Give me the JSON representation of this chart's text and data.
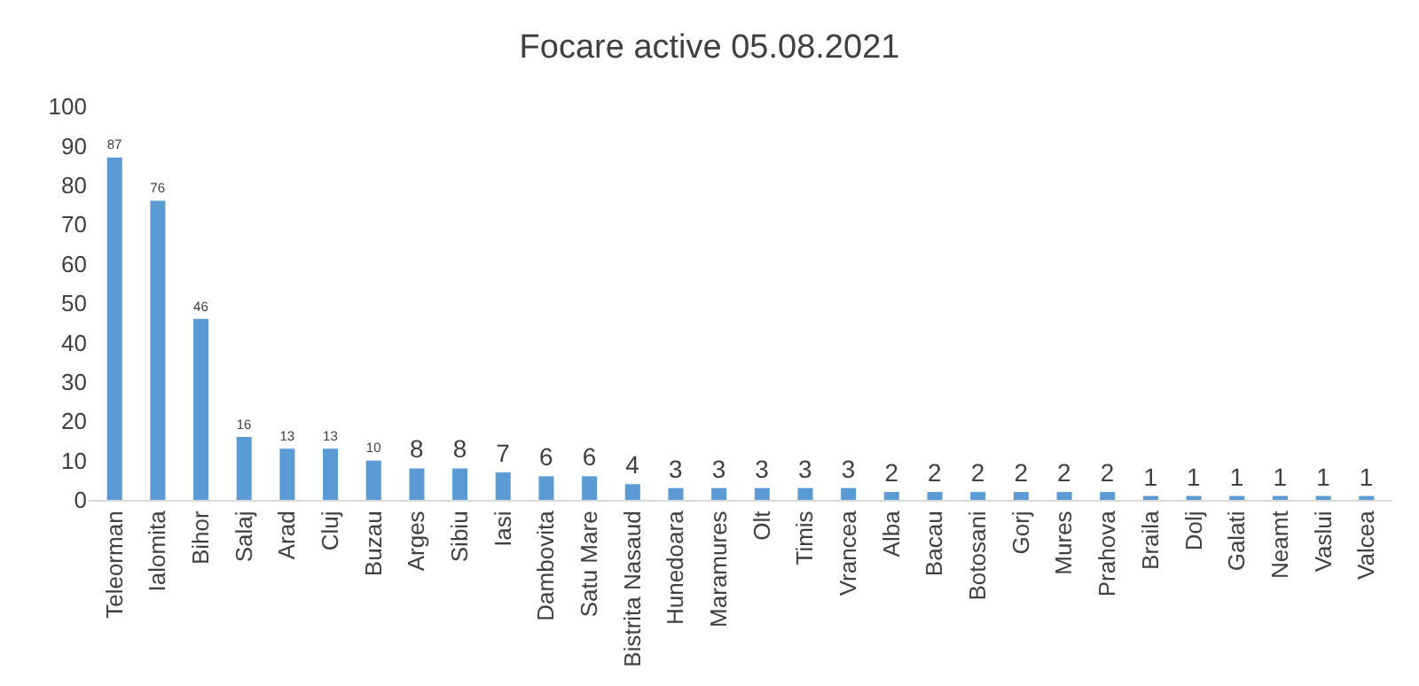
{
  "chart_data": {
    "type": "bar",
    "title": "Focare active 05.08.2021",
    "categories": [
      "Teleorman",
      "Ialomita",
      "Bihor",
      "Salaj",
      "Arad",
      "Cluj",
      "Buzau",
      "Arges",
      "Sibiu",
      "Iasi",
      "Dambovita",
      "Satu Mare",
      "Bistrita Nasaud",
      "Hunedoara",
      "Maramures",
      "Olt",
      "Timis",
      "Vrancea",
      "Alba",
      "Bacau",
      "Botosani",
      "Gorj",
      "Mures",
      "Prahova",
      "Braila",
      "Dolj",
      "Galati",
      "Neamt",
      "Vaslui",
      "Valcea"
    ],
    "values": [
      87,
      76,
      46,
      16,
      13,
      13,
      10,
      8,
      8,
      7,
      6,
      6,
      4,
      3,
      3,
      3,
      3,
      3,
      2,
      2,
      2,
      2,
      2,
      2,
      1,
      1,
      1,
      1,
      1,
      1
    ],
    "color": "#5b9bd5",
    "ylim": [
      0,
      100
    ],
    "yticks": [
      0,
      10,
      20,
      30,
      40,
      50,
      60,
      70,
      80,
      90,
      100
    ],
    "grid": false,
    "data_labels": true
  }
}
